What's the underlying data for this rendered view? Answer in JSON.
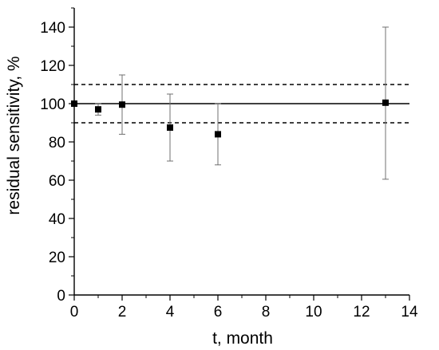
{
  "chart_data": {
    "type": "scatter",
    "xlabel": "t, month",
    "ylabel": "residual sensitivity, %",
    "xlim": [
      0,
      14
    ],
    "ylim": [
      0,
      150
    ],
    "x_ticks": [
      0,
      2,
      4,
      6,
      8,
      10,
      12,
      14
    ],
    "y_ticks": [
      0,
      20,
      40,
      60,
      80,
      100,
      120,
      140
    ],
    "grid": false,
    "series": [
      {
        "marker": "square",
        "color": "#000000",
        "points": [
          {
            "x": 0,
            "y": 100,
            "err_low": 100,
            "err_high": 100
          },
          {
            "x": 1,
            "y": 97,
            "err_low": 94,
            "err_high": 100
          },
          {
            "x": 2,
            "y": 99.5,
            "err_low": 84,
            "err_high": 115
          },
          {
            "x": 4,
            "y": 87.5,
            "err_low": 70,
            "err_high": 105
          },
          {
            "x": 6,
            "y": 84,
            "err_low": 68,
            "err_high": 100
          },
          {
            "x": 13,
            "y": 100.5,
            "err_low": 60.5,
            "err_high": 140
          }
        ]
      }
    ],
    "reference_lines": [
      {
        "y": 100,
        "style": "solid"
      },
      {
        "y": 110,
        "style": "dashed"
      },
      {
        "y": 90,
        "style": "dashed"
      }
    ],
    "errorbar_color": "#707070"
  }
}
